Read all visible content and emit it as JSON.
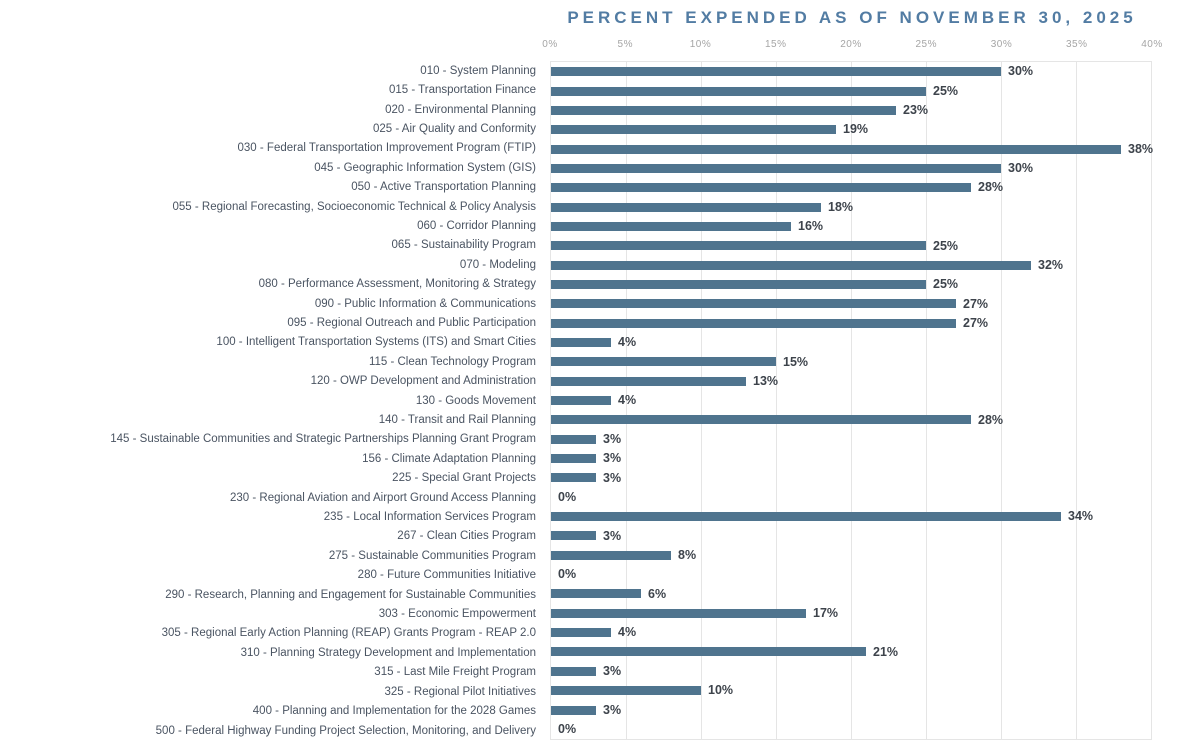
{
  "chart_data": {
    "type": "bar",
    "orientation": "horizontal",
    "title": "PERCENT EXPENDED AS OF NOVEMBER 30, 2025",
    "xlabel": "",
    "ylabel": "",
    "xlim": [
      0,
      40
    ],
    "x_ticks": [
      "0%",
      "5%",
      "10%",
      "15%",
      "20%",
      "25%",
      "30%",
      "35%",
      "40%"
    ],
    "grid": true,
    "legend": "none",
    "value_suffix": "%",
    "bar_color": "#4f748e",
    "title_color": "#527ca3",
    "gridline_color": "#e5e5e5",
    "tick_label_color": "#a5a5a5",
    "category_label_color": "#4a5462",
    "value_label_color": "#3d434b",
    "categories": [
      "010 - System Planning",
      "015 - Transportation Finance",
      "020 - Environmental Planning",
      "025 - Air Quality and Conformity",
      "030 - Federal Transportation Improvement Program (FTIP)",
      "045 - Geographic Information System (GIS)",
      "050 - Active Transportation Planning",
      "055 - Regional Forecasting, Socioeconomic Technical & Policy Analysis",
      "060 - Corridor Planning",
      "065 - Sustainability Program",
      "070 - Modeling",
      "080 - Performance Assessment, Monitoring & Strategy",
      "090 - Public Information & Communications",
      "095 - Regional Outreach and Public Participation",
      "100 - Intelligent Transportation Systems (ITS) and Smart Cities",
      "115 - Clean Technology Program",
      "120 - OWP Development and Administration",
      "130 - Goods Movement",
      "140 - Transit and Rail Planning",
      "145 - Sustainable Communities and Strategic Partnerships Planning Grant Program",
      "156 - Climate Adaptation Planning",
      "225 - Special Grant Projects",
      "230 - Regional Aviation and Airport Ground Access Planning",
      "235 - Local Information Services Program",
      "267 - Clean Cities Program",
      "275 - Sustainable Communities Program",
      "280 - Future Communities Initiative",
      "290 - Research, Planning and Engagement for Sustainable Communities",
      "303 - Economic Empowerment",
      "305 - Regional Early Action Planning (REAP) Grants Program - REAP 2.0",
      "310 - Planning Strategy Development and Implementation",
      "315 - Last Mile Freight Program",
      "325 - Regional Pilot Initiatives",
      "400 - Planning and Implementation for the 2028 Games",
      "500 - Federal Highway Funding Project Selection, Monitoring, and Delivery"
    ],
    "values": [
      30,
      25,
      23,
      19,
      38,
      30,
      28,
      18,
      16,
      25,
      32,
      25,
      27,
      27,
      4,
      15,
      13,
      4,
      28,
      3,
      3,
      3,
      0,
      34,
      3,
      8,
      0,
      6,
      17,
      4,
      21,
      3,
      10,
      3,
      0
    ]
  }
}
